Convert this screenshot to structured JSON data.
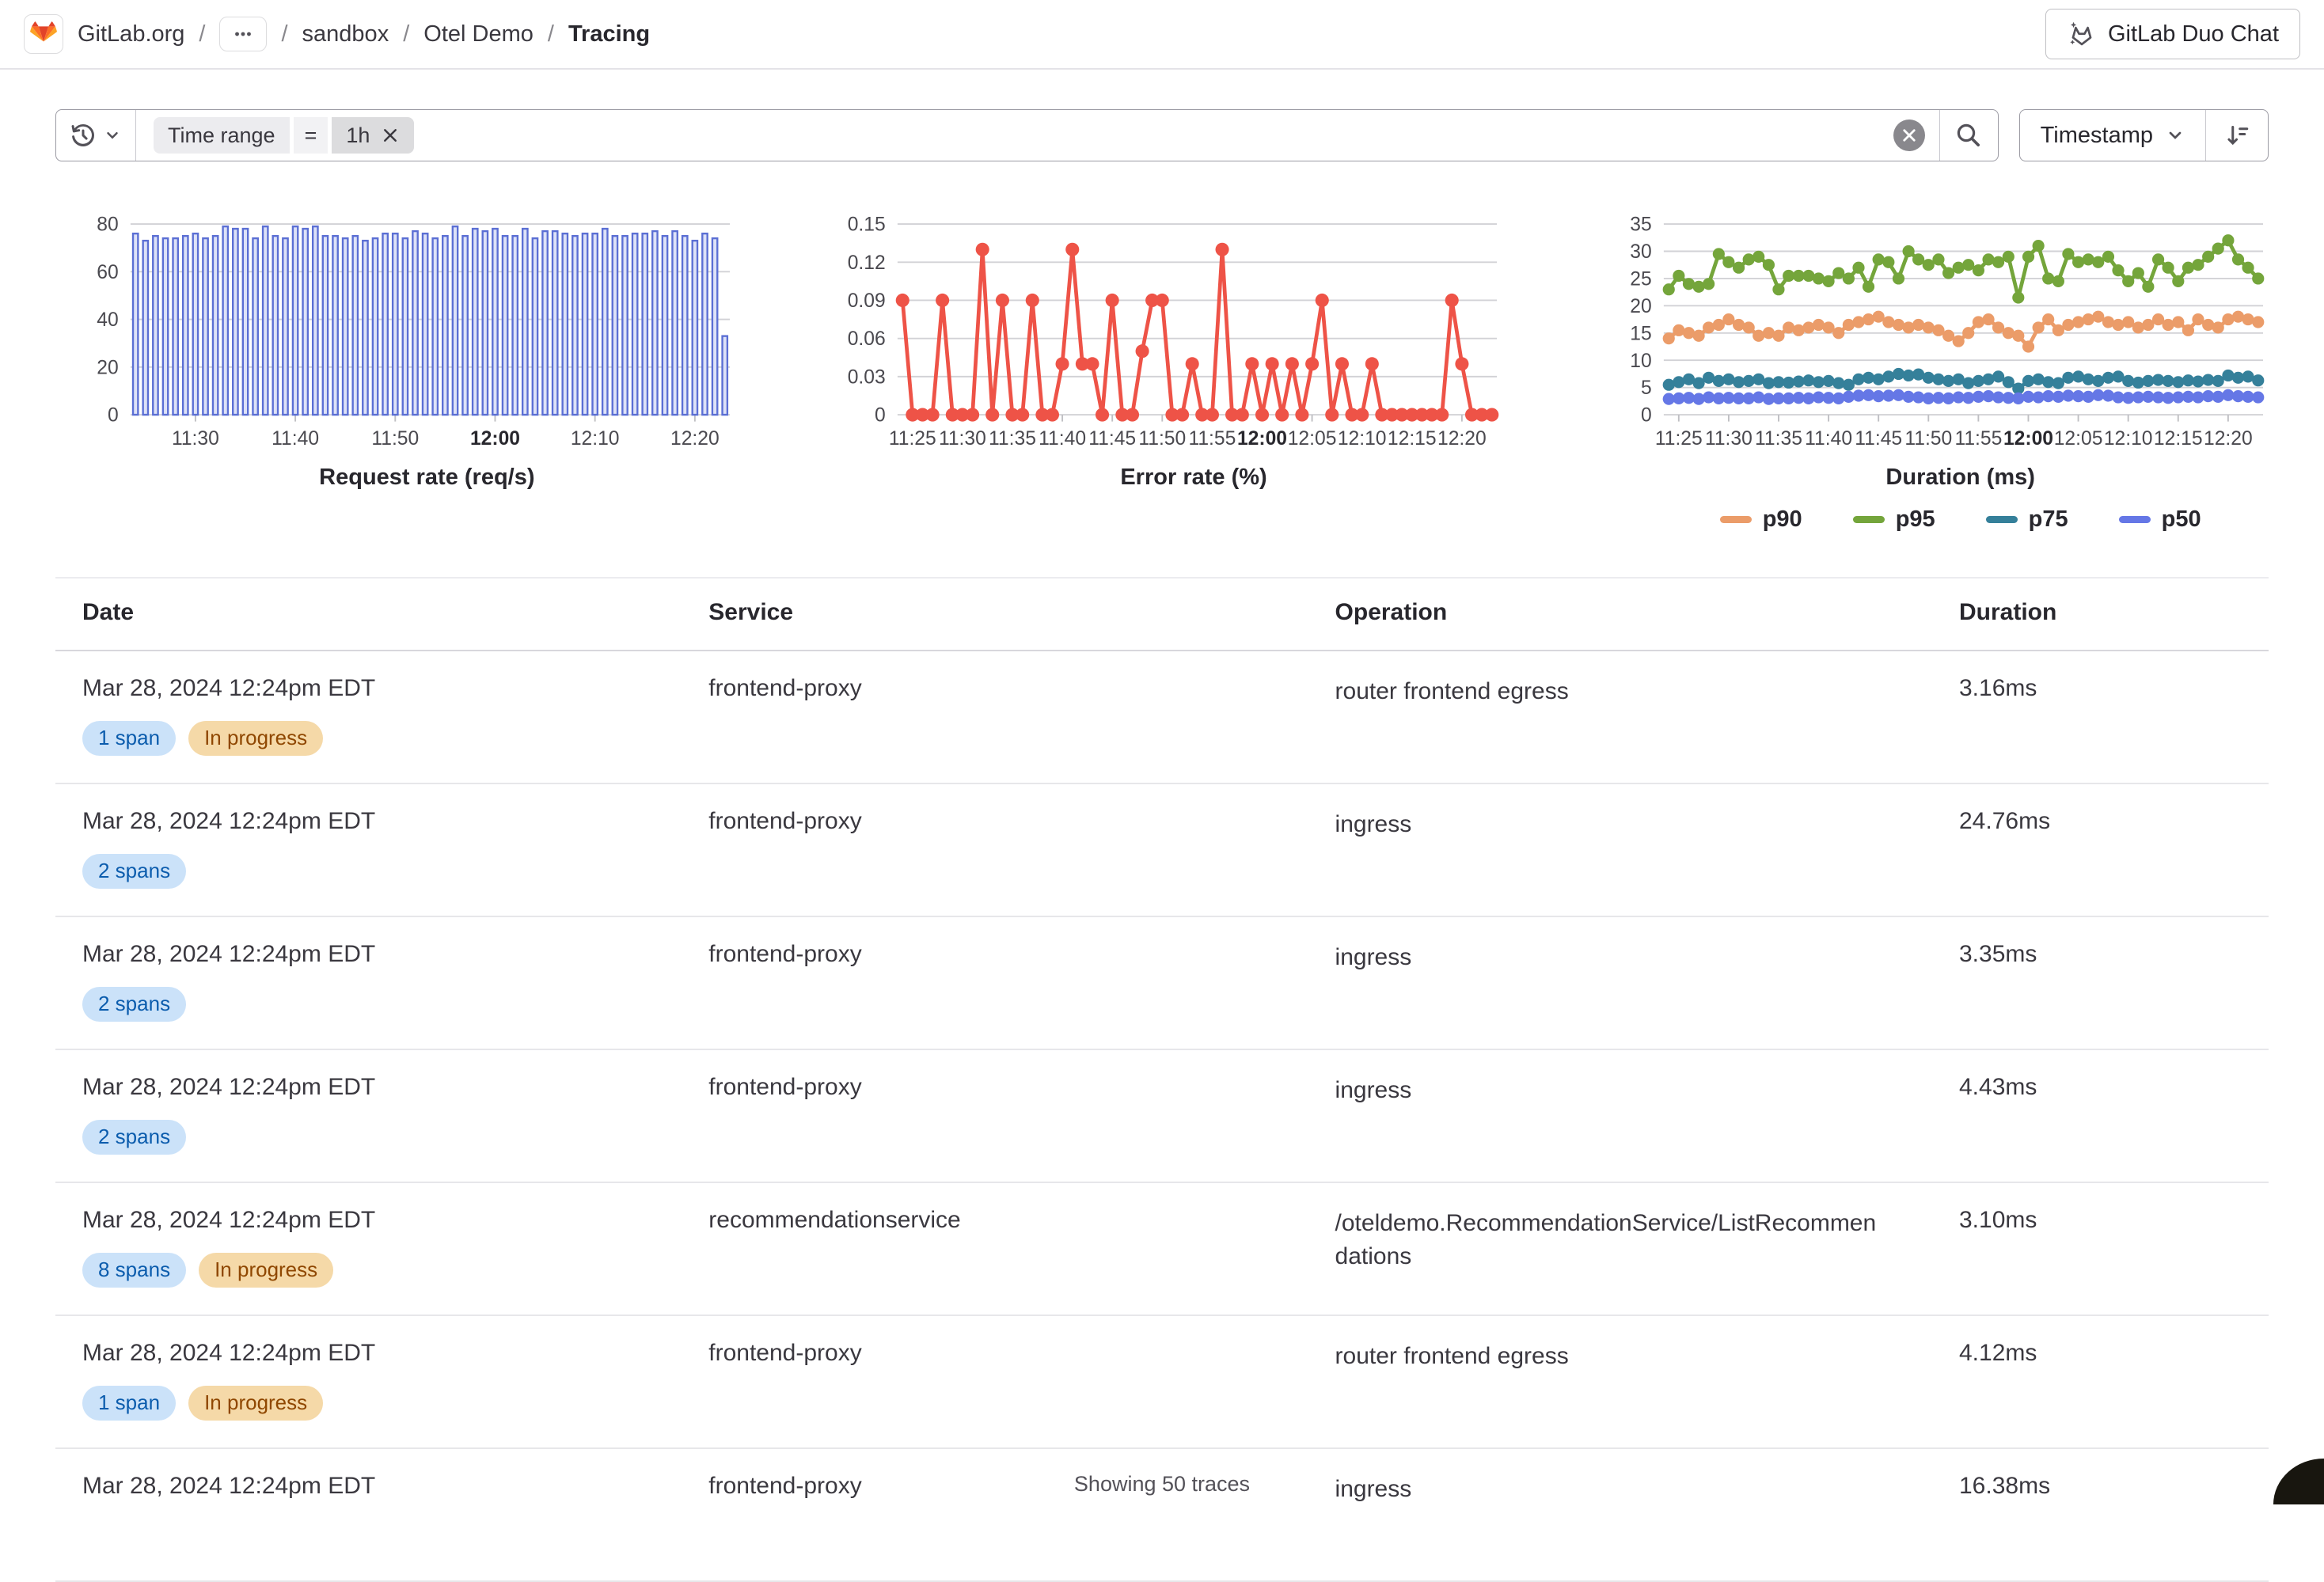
{
  "header": {
    "breadcrumb": {
      "root": "GitLab.org",
      "items": [
        "sandbox",
        "Otel Demo"
      ],
      "current": "Tracing"
    },
    "duo_chat_label": "GitLab Duo Chat"
  },
  "filter": {
    "token": {
      "key": "Time range",
      "operator": "=",
      "value": "1h"
    },
    "sort_label": "Timestamp"
  },
  "icons": {
    "breadcrumb_logo": "gitlab-tanuki-logo",
    "breadcrumb_more": "ellipsis-icon",
    "duo_chat": "tanuki-ai-icon",
    "filter_left": "history-icon + chevron-down-icon",
    "token_close": "close-icon",
    "filter_clear": "clear-circle-icon",
    "filter_search": "search-icon",
    "sort_field": "chevron-down-icon",
    "sort_direction": "sort-descending-icon"
  },
  "colors": {
    "bar_stroke": "#5b6fd4",
    "bar_fill": "#dde2f8",
    "error_red": "#ee5347",
    "p90_orange": "#eb9c69",
    "p95_green": "#74a53b",
    "p75_teal": "#35809a",
    "p50_blue": "#6577e6",
    "badge_info_bg": "#cbe2f9",
    "badge_info_text": "#0b5cad",
    "badge_warning_bg": "#f5d9a8",
    "badge_warning_text": "#8f4700"
  },
  "chart_data": [
    {
      "type": "bar",
      "title": "Request rate (req/s)",
      "ylim": [
        0,
        80
      ],
      "y_ticks": [
        {
          "v": 0,
          "label": "0"
        },
        {
          "v": 20,
          "label": "20"
        },
        {
          "v": 40,
          "label": "40"
        },
        {
          "v": 60,
          "label": "60"
        },
        {
          "v": 80,
          "label": "80"
        }
      ],
      "x_ticks": [
        {
          "i": 6,
          "label": "11:30"
        },
        {
          "i": 16,
          "label": "11:40"
        },
        {
          "i": 26,
          "label": "11:50"
        },
        {
          "i": 36,
          "label": "12:00"
        },
        {
          "i": 46,
          "label": "12:10"
        },
        {
          "i": 56,
          "label": "12:20"
        }
      ],
      "bar_stroke": "#5b6fd4",
      "bar_fill": "#dde2f8",
      "values": [
        76,
        73,
        75,
        74,
        74,
        75,
        76,
        74,
        75,
        79,
        78,
        78,
        74,
        79,
        75,
        74,
        79,
        78,
        79,
        75,
        75,
        74,
        75,
        73,
        74,
        76,
        76,
        74,
        77,
        76,
        74,
        75,
        79,
        75,
        78,
        77,
        78,
        75,
        75,
        78,
        74,
        77,
        77,
        76,
        75,
        76,
        76,
        78,
        75,
        75,
        76,
        76,
        77,
        75,
        77,
        75,
        73,
        76,
        74,
        33
      ]
    },
    {
      "type": "line",
      "title": "Error rate (%)",
      "ylim": [
        0,
        0.15
      ],
      "y_ticks": [
        {
          "v": 0,
          "label": "0"
        },
        {
          "v": 0.03,
          "label": "0.03"
        },
        {
          "v": 0.06,
          "label": "0.06"
        },
        {
          "v": 0.09,
          "label": "0.09"
        },
        {
          "v": 0.12,
          "label": "0.12"
        },
        {
          "v": 0.15,
          "label": "0.15"
        }
      ],
      "x_ticks": [
        {
          "i": 1,
          "label": "11:25"
        },
        {
          "i": 6,
          "label": "11:30"
        },
        {
          "i": 11,
          "label": "11:35"
        },
        {
          "i": 16,
          "label": "11:40"
        },
        {
          "i": 21,
          "label": "11:45"
        },
        {
          "i": 26,
          "label": "11:50"
        },
        {
          "i": 31,
          "label": "11:55"
        },
        {
          "i": 36,
          "label": "12:00"
        },
        {
          "i": 41,
          "label": "12:05"
        },
        {
          "i": 46,
          "label": "12:10"
        },
        {
          "i": 51,
          "label": "12:15"
        },
        {
          "i": 56,
          "label": "12:20"
        }
      ],
      "series": [
        {
          "name": "error rate",
          "color": "#ee5347",
          "marker_r": 9,
          "width": 5,
          "values": [
            0.09,
            0,
            0,
            0,
            0.09,
            0,
            0,
            0,
            0.13,
            0,
            0.09,
            0,
            0,
            0.09,
            0,
            0,
            0.04,
            0.13,
            0.04,
            0.04,
            0,
            0.09,
            0,
            0,
            0.05,
            0.09,
            0.09,
            0,
            0,
            0.04,
            0,
            0,
            0.13,
            0,
            0,
            0.04,
            0,
            0.04,
            0,
            0.04,
            0,
            0.04,
            0.09,
            0,
            0.04,
            0,
            0,
            0.04,
            0,
            0,
            0,
            0,
            0,
            0,
            0,
            0.09,
            0.04,
            0,
            0,
            0
          ]
        }
      ]
    },
    {
      "type": "line",
      "title": "Duration (ms)",
      "ylim": [
        0,
        35
      ],
      "y_ticks": [
        {
          "v": 0,
          "label": "0"
        },
        {
          "v": 5,
          "label": "5"
        },
        {
          "v": 10,
          "label": "10"
        },
        {
          "v": 15,
          "label": "15"
        },
        {
          "v": 20,
          "label": "20"
        },
        {
          "v": 25,
          "label": "25"
        },
        {
          "v": 30,
          "label": "30"
        },
        {
          "v": 35,
          "label": "35"
        }
      ],
      "x_ticks": [
        {
          "i": 1,
          "label": "11:25"
        },
        {
          "i": 6,
          "label": "11:30"
        },
        {
          "i": 11,
          "label": "11:35"
        },
        {
          "i": 16,
          "label": "11:40"
        },
        {
          "i": 21,
          "label": "11:45"
        },
        {
          "i": 26,
          "label": "11:50"
        },
        {
          "i": 31,
          "label": "11:55"
        },
        {
          "i": 36,
          "label": "12:00"
        },
        {
          "i": 41,
          "label": "12:05"
        },
        {
          "i": 46,
          "label": "12:10"
        },
        {
          "i": 51,
          "label": "12:15"
        },
        {
          "i": 56,
          "label": "12:20"
        }
      ],
      "legend": true,
      "series": [
        {
          "name": "p90",
          "color": "#eb9c69",
          "marker_r": 8,
          "width": 5,
          "values": [
            14,
            15.5,
            15,
            14.5,
            16,
            16.5,
            17.5,
            16.5,
            16,
            14.5,
            15,
            14.5,
            16,
            15.5,
            16,
            16.5,
            16,
            15,
            16.5,
            17,
            17.5,
            18,
            17,
            16.5,
            16,
            16.5,
            16,
            15.5,
            14.5,
            13.5,
            15,
            17,
            17.5,
            16,
            15,
            14.5,
            12.5,
            16,
            17.5,
            15.5,
            16.5,
            17,
            17.5,
            18,
            17,
            16.5,
            17,
            16,
            16.5,
            17.5,
            16.5,
            17,
            15.5,
            17.5,
            16.5,
            16,
            17.5,
            18,
            17.5,
            17
          ]
        },
        {
          "name": "p95",
          "color": "#74a53b",
          "marker_r": 8,
          "width": 5,
          "values": [
            23,
            25.5,
            24,
            23.5,
            24,
            29.5,
            28,
            27,
            28.5,
            29,
            27.5,
            23,
            25.5,
            25.5,
            25.5,
            25,
            24.5,
            26,
            25,
            27,
            23.5,
            28.5,
            28,
            25,
            30,
            28.5,
            27.5,
            28.5,
            26,
            27,
            27.5,
            26.5,
            28.5,
            28,
            29,
            21.5,
            29,
            31,
            25,
            24.5,
            29.5,
            28,
            28.5,
            28,
            29,
            26.5,
            24.5,
            26,
            23.5,
            28.5,
            27,
            24.5,
            27,
            27.5,
            29,
            30.5,
            32,
            28.5,
            27,
            25
          ]
        },
        {
          "name": "p75",
          "color": "#35809a",
          "marker_r": 8,
          "width": 5,
          "values": [
            5.5,
            6,
            6.5,
            5.8,
            6.8,
            6.2,
            6.5,
            6,
            6.2,
            6.5,
            5.8,
            6,
            5.9,
            6.1,
            6.3,
            6,
            6.2,
            5.8,
            5.5,
            6.5,
            6.8,
            6.5,
            7,
            7.5,
            7.2,
            7.4,
            6.8,
            6.5,
            6.2,
            6.5,
            5.8,
            6.2,
            6.5,
            7,
            6,
            4.8,
            6.2,
            6.5,
            6,
            5.8,
            6.8,
            7,
            6.5,
            6.2,
            6.8,
            7,
            6.2,
            5.9,
            6.2,
            6.4,
            6.2,
            6,
            6.3,
            6.1,
            6.4,
            6.2,
            7.2,
            6.8,
            7,
            6.3
          ]
        },
        {
          "name": "p50",
          "color": "#6577e6",
          "marker_r": 8,
          "width": 5,
          "values": [
            2.9,
            3,
            3.1,
            2.9,
            3.2,
            3,
            3.1,
            3,
            3,
            3.2,
            2.9,
            3,
            3,
            3.1,
            3,
            3.2,
            3.1,
            3,
            3.3,
            3.5,
            3.6,
            3.4,
            3.5,
            3.6,
            3.3,
            3.2,
            3,
            3.1,
            3,
            3.2,
            3.1,
            3.3,
            3.4,
            3.2,
            3.1,
            3,
            3.3,
            3.2,
            3.4,
            3.3,
            3.5,
            3.4,
            3.3,
            3.6,
            3.5,
            3.2,
            3.1,
            3.2,
            3.3,
            3.2,
            3.1,
            3.2,
            3.3,
            3.2,
            3.4,
            3.3,
            3.6,
            3.4,
            3.3,
            3.2
          ]
        }
      ]
    }
  ],
  "table": {
    "columns": [
      "Date",
      "Service",
      "Operation",
      "Duration"
    ],
    "rows": [
      {
        "date": "Mar 28, 2024 12:24pm EDT",
        "badges": [
          {
            "label": "1 span",
            "type": "info"
          },
          {
            "label": "In progress",
            "type": "warning"
          }
        ],
        "service": "frontend-proxy",
        "operation": "router frontend egress",
        "duration": "3.16ms"
      },
      {
        "date": "Mar 28, 2024 12:24pm EDT",
        "badges": [
          {
            "label": "2 spans",
            "type": "info"
          }
        ],
        "service": "frontend-proxy",
        "operation": "ingress",
        "duration": "24.76ms"
      },
      {
        "date": "Mar 28, 2024 12:24pm EDT",
        "badges": [
          {
            "label": "2 spans",
            "type": "info"
          }
        ],
        "service": "frontend-proxy",
        "operation": "ingress",
        "duration": "3.35ms"
      },
      {
        "date": "Mar 28, 2024 12:24pm EDT",
        "badges": [
          {
            "label": "2 spans",
            "type": "info"
          }
        ],
        "service": "frontend-proxy",
        "operation": "ingress",
        "duration": "4.43ms"
      },
      {
        "date": "Mar 28, 2024 12:24pm EDT",
        "badges": [
          {
            "label": "8 spans",
            "type": "info"
          },
          {
            "label": "In progress",
            "type": "warning"
          }
        ],
        "service": "recommendationservice",
        "operation": "/oteldemo.RecommendationService/ListRecommendations",
        "duration": "3.10ms"
      },
      {
        "date": "Mar 28, 2024 12:24pm EDT",
        "badges": [
          {
            "label": "1 span",
            "type": "info"
          },
          {
            "label": "In progress",
            "type": "warning"
          }
        ],
        "service": "frontend-proxy",
        "operation": "router frontend egress",
        "duration": "4.12ms"
      },
      {
        "date": "Mar 28, 2024 12:24pm EDT",
        "badges": [],
        "service": "frontend-proxy",
        "operation": "ingress",
        "duration": "16.38ms"
      }
    ]
  },
  "footer": {
    "summary": "Showing 50 traces"
  }
}
